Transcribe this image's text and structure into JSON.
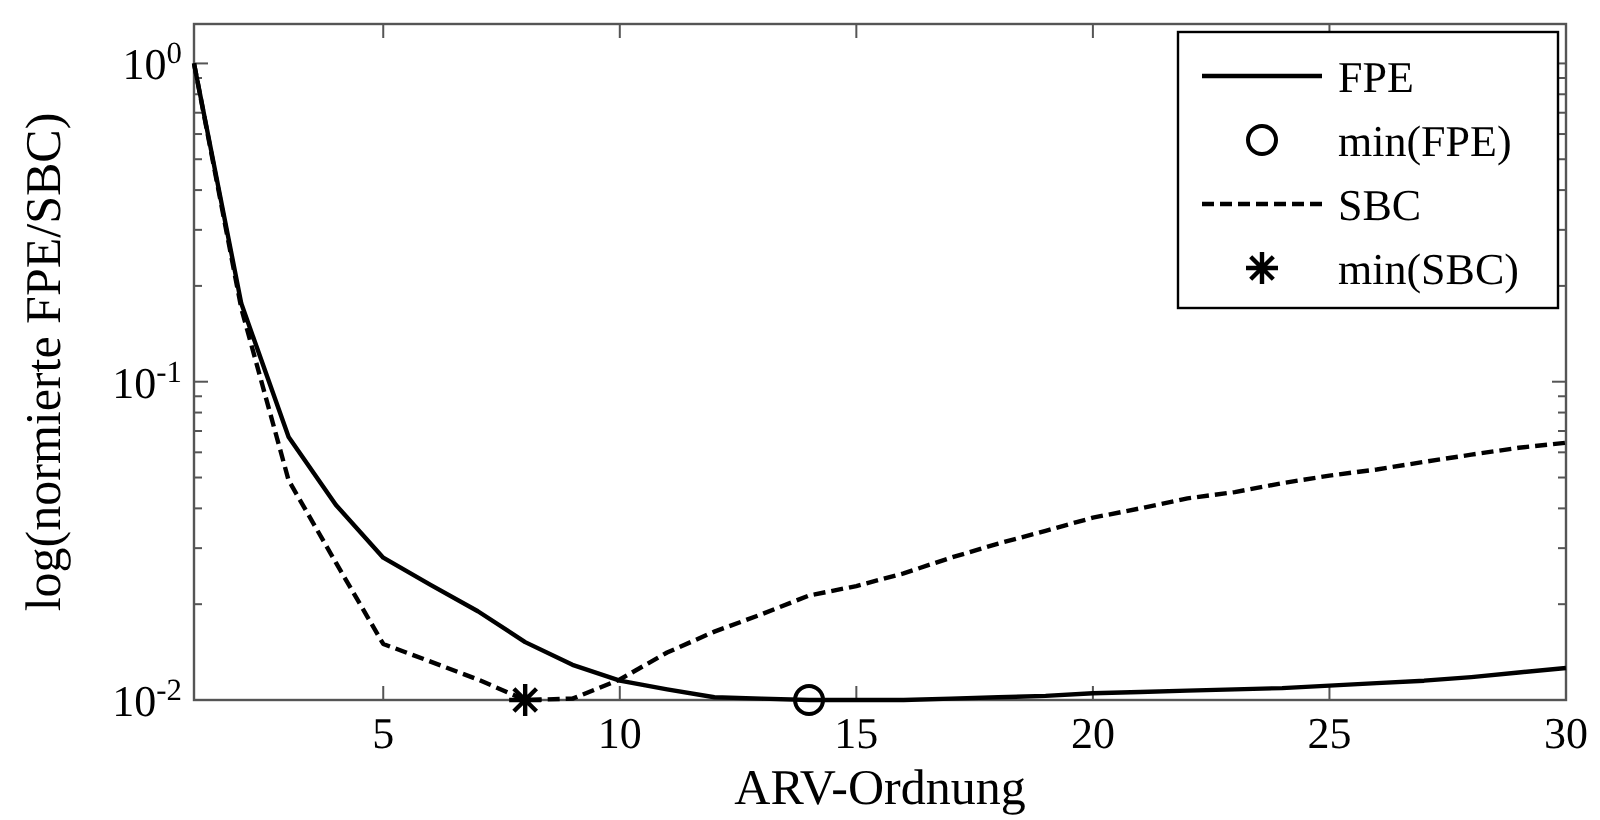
{
  "chart_data": {
    "type": "line",
    "xlabel": "ARV-Ordnung",
    "ylabel": "log(normierte FPE/SBC)",
    "log": "y",
    "grid": false,
    "legend": "top right",
    "xlim": [
      1,
      30
    ],
    "xticks": [
      5,
      10,
      15,
      20,
      25,
      30
    ],
    "ylim": [
      0.01,
      1.33
    ],
    "yticks": [
      {
        "value": 0.01,
        "label": "10$^{-2}$"
      },
      {
        "value": 0.1,
        "label": "10$^{-1}$"
      },
      {
        "value": 1,
        "label": "10$^{0}$"
      }
    ],
    "series": [
      {
        "name": "FPE",
        "color": "#000000",
        "line_style": "solid",
        "marker": "none",
        "x": [
          1,
          2,
          3,
          4,
          5,
          6,
          7,
          8,
          9,
          10,
          11,
          12,
          13,
          14,
          15,
          16,
          17,
          18,
          19,
          20,
          21,
          22,
          23,
          24,
          25,
          26,
          27,
          28,
          29,
          30
        ],
        "values": [
          1.0,
          0.176,
          0.067,
          0.041,
          0.028,
          0.023,
          0.019,
          0.0152,
          0.0129,
          0.0115,
          0.0108,
          0.0102,
          0.0101,
          0.01,
          0.01,
          0.01,
          0.0101,
          0.0102,
          0.0103,
          0.0105,
          0.0106,
          0.0107,
          0.0108,
          0.0109,
          0.0111,
          0.0113,
          0.0115,
          0.0118,
          0.0122,
          0.0126
        ]
      },
      {
        "name": "min(FPE)",
        "type": "scatter",
        "color": "#000000",
        "marker": "circle",
        "x": [
          14
        ],
        "values": [
          0.01
        ]
      },
      {
        "name": "SBC",
        "color": "#000000",
        "line_style": "dashed",
        "marker": "none",
        "x": [
          1,
          2,
          3,
          4,
          5,
          6,
          7,
          8,
          9,
          10,
          11,
          12,
          13,
          14,
          15,
          16,
          17,
          18,
          19,
          20,
          21,
          22,
          23,
          24,
          25,
          26,
          27,
          28,
          29,
          30
        ],
        "values": [
          1.0,
          0.17,
          0.049,
          0.027,
          0.015,
          0.0132,
          0.0116,
          0.01,
          0.0101,
          0.0116,
          0.0141,
          0.0164,
          0.0186,
          0.0213,
          0.0228,
          0.025,
          0.028,
          0.031,
          0.034,
          0.0374,
          0.04,
          0.043,
          0.045,
          0.048,
          0.0507,
          0.053,
          0.056,
          0.059,
          0.062,
          0.0643
        ]
      },
      {
        "name": "min(SBC)",
        "type": "scatter",
        "color": "#000000",
        "marker": "cross",
        "x": [
          8
        ],
        "values": [
          0.01
        ]
      }
    ]
  }
}
